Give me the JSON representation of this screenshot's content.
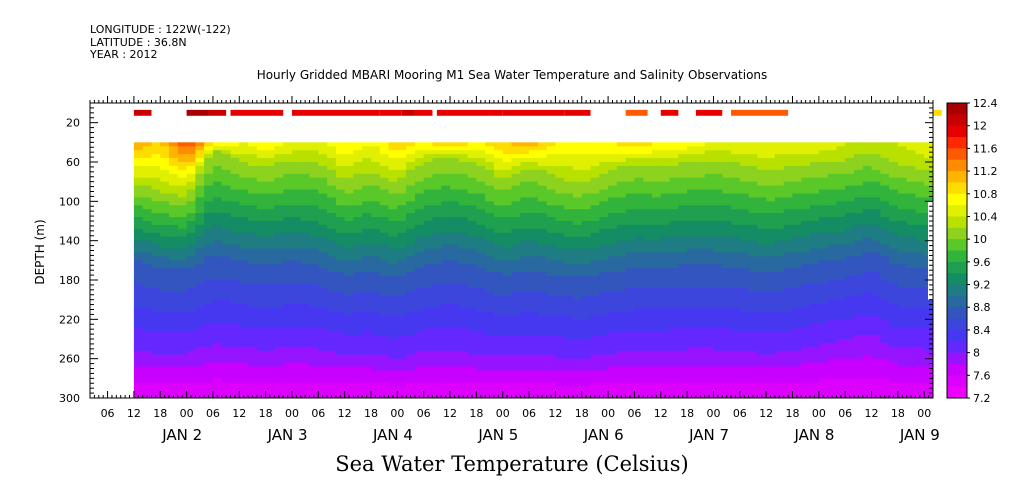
{
  "header": {
    "longitude": "LONGITUDE : 122W(-122)",
    "latitude": "LATITUDE : 36.8N",
    "year": "YEAR : 2012"
  },
  "chart_data": {
    "type": "heatmap",
    "title": "Hourly Gridded MBARI Mooring M1 Sea Water Temperature and Salinity Observations",
    "bottom_title": "Sea Water Temperature (Celsius)",
    "ylabel": "DEPTH (m)",
    "y_axis": {
      "ylim": [
        300,
        0
      ],
      "ticks": [
        20,
        60,
        100,
        140,
        180,
        220,
        260,
        300
      ],
      "reversed": true
    },
    "x_axis": {
      "start": "JAN 1 2012 02:00",
      "end": "JAN 9 2012 04:00",
      "hour_ticks": [
        "06",
        "12",
        "18",
        "00",
        "06",
        "12",
        "18",
        "00",
        "06",
        "12",
        "18",
        "00",
        "06",
        "12",
        "18",
        "00",
        "06",
        "12",
        "18",
        "00",
        "06",
        "12",
        "18",
        "00",
        "06",
        "12",
        "18",
        "00",
        "06",
        "12",
        "18",
        "00"
      ],
      "day_labels": [
        "JAN 2",
        "JAN 3",
        "JAN 4",
        "JAN 5",
        "JAN 6",
        "JAN 7",
        "JAN 8",
        "JAN 9"
      ]
    },
    "colorbar": {
      "range": [
        7.2,
        12.4
      ],
      "labels": [
        "12.4",
        "12",
        "11.6",
        "11.2",
        "10.8",
        "10.4",
        "10",
        "9.6",
        "9.2",
        "8.8",
        "8.4",
        "8",
        "7.6",
        "7.2"
      ],
      "colors": [
        "#a80000",
        "#c80000",
        "#e60000",
        "#ff2800",
        "#ff5a00",
        "#ff8c00",
        "#ffb400",
        "#ffdc00",
        "#ffff00",
        "#e1f000",
        "#b9e100",
        "#8cd21e",
        "#5ac828",
        "#32b43c",
        "#1ea050",
        "#148c64",
        "#1e7d82",
        "#2869a0",
        "#3255be",
        "#3c46dc",
        "#4638f0",
        "#6428ff",
        "#9614ff",
        "#c800ff",
        "#dc00ff",
        "#ee00ff"
      ]
    },
    "data_start_hour": 12,
    "surface_band": {
      "depth": 10,
      "segments": [
        {
          "start": "JAN 1 12:00",
          "end": "JAN 1 16:00",
          "value": 12.2
        },
        {
          "start": "JAN 2 00:00",
          "end": "JAN 2 05:00",
          "value": 12.4
        },
        {
          "start": "JAN 2 05:00",
          "end": "JAN 2 09:00",
          "value": 12.2
        },
        {
          "start": "JAN 2 10:00",
          "end": "JAN 2 22:00",
          "value": 12.0
        },
        {
          "start": "JAN 3 00:00",
          "end": "JAN 3 20:00",
          "value": 12.0
        },
        {
          "start": "JAN 3 20:00",
          "end": "JAN 4 01:00",
          "value": 12.0
        },
        {
          "start": "JAN 4 01:00",
          "end": "JAN 4 04:00",
          "value": 12.2
        },
        {
          "start": "JAN 4 04:00",
          "end": "JAN 4 08:00",
          "value": 12.0
        },
        {
          "start": "JAN 4 09:00",
          "end": "JAN 4 21:00",
          "value": 12.0
        },
        {
          "start": "JAN 4 21:00",
          "end": "JAN 5 00:00",
          "value": 12.0
        },
        {
          "start": "JAN 5 00:00",
          "end": "JAN 5 14:00",
          "value": 11.9
        },
        {
          "start": "JAN 5 14:00",
          "end": "JAN 5 20:00",
          "value": 12.0
        },
        {
          "start": "JAN 6 04:00",
          "end": "JAN 6 09:00",
          "value": 11.5
        },
        {
          "start": "JAN 6 12:00",
          "end": "JAN 6 16:00",
          "value": 11.8
        },
        {
          "start": "JAN 6 20:00",
          "end": "JAN 7 02:00",
          "value": 11.8
        },
        {
          "start": "JAN 7 04:00",
          "end": "JAN 7 17:00",
          "value": 11.6
        },
        {
          "start": "JAN 9 02:00",
          "end": "JAN 9 04:00",
          "value": 11.0
        }
      ]
    },
    "profile": {
      "top_depth": 40,
      "time_series": [
        {
          "t": "JAN 1 12:00",
          "thermocline": 82,
          "mid_isotherm": 160,
          "deep_isotherm": 250,
          "surface_value": 11.2
        },
        {
          "t": "JAN 1 18:00",
          "thermocline": 90,
          "mid_isotherm": 168,
          "deep_isotherm": 255,
          "surface_value": 11.0
        },
        {
          "t": "JAN 2 00:00",
          "thermocline": 95,
          "mid_isotherm": 170,
          "deep_isotherm": 255,
          "surface_value": 11.6
        },
        {
          "t": "JAN 2 06:00",
          "thermocline": 48,
          "mid_isotherm": 155,
          "deep_isotherm": 245,
          "surface_value": 11.0
        },
        {
          "t": "JAN 2 12:00",
          "thermocline": 60,
          "mid_isotherm": 160,
          "deep_isotherm": 248,
          "surface_value": 10.6
        },
        {
          "t": "JAN 2 18:00",
          "thermocline": 65,
          "mid_isotherm": 165,
          "deep_isotherm": 252,
          "surface_value": 10.8
        },
        {
          "t": "JAN 3 00:00",
          "thermocline": 58,
          "mid_isotherm": 160,
          "deep_isotherm": 248,
          "surface_value": 10.6
        },
        {
          "t": "JAN 3 06:00",
          "thermocline": 60,
          "mid_isotherm": 165,
          "deep_isotherm": 250,
          "surface_value": 10.6
        },
        {
          "t": "JAN 3 12:00",
          "thermocline": 78,
          "mid_isotherm": 175,
          "deep_isotherm": 255,
          "surface_value": 10.8
        },
        {
          "t": "JAN 3 18:00",
          "thermocline": 70,
          "mid_isotherm": 170,
          "deep_isotherm": 255,
          "surface_value": 10.6
        },
        {
          "t": "JAN 4 00:00",
          "thermocline": 80,
          "mid_isotherm": 178,
          "deep_isotherm": 260,
          "surface_value": 11.0
        },
        {
          "t": "JAN 4 06:00",
          "thermocline": 60,
          "mid_isotherm": 165,
          "deep_isotherm": 252,
          "surface_value": 10.8
        },
        {
          "t": "JAN 4 12:00",
          "thermocline": 55,
          "mid_isotherm": 160,
          "deep_isotherm": 250,
          "surface_value": 11.0
        },
        {
          "t": "JAN 4 18:00",
          "thermocline": 62,
          "mid_isotherm": 165,
          "deep_isotherm": 255,
          "surface_value": 10.8
        },
        {
          "t": "JAN 5 00:00",
          "thermocline": 78,
          "mid_isotherm": 175,
          "deep_isotherm": 258,
          "surface_value": 11.0
        },
        {
          "t": "JAN 5 06:00",
          "thermocline": 65,
          "mid_isotherm": 170,
          "deep_isotherm": 255,
          "surface_value": 11.2
        },
        {
          "t": "JAN 5 12:00",
          "thermocline": 75,
          "mid_isotherm": 175,
          "deep_isotherm": 258,
          "surface_value": 10.8
        },
        {
          "t": "JAN 5 18:00",
          "thermocline": 82,
          "mid_isotherm": 178,
          "deep_isotherm": 260,
          "surface_value": 10.8
        },
        {
          "t": "JAN 6 00:00",
          "thermocline": 70,
          "mid_isotherm": 172,
          "deep_isotherm": 255,
          "surface_value": 10.8
        },
        {
          "t": "JAN 6 06:00",
          "thermocline": 62,
          "mid_isotherm": 168,
          "deep_isotherm": 252,
          "surface_value": 11.0
        },
        {
          "t": "JAN 6 12:00",
          "thermocline": 65,
          "mid_isotherm": 168,
          "deep_isotherm": 252,
          "surface_value": 10.8
        },
        {
          "t": "JAN 6 18:00",
          "thermocline": 60,
          "mid_isotherm": 165,
          "deep_isotherm": 250,
          "surface_value": 10.8
        },
        {
          "t": "JAN 7 00:00",
          "thermocline": 58,
          "mid_isotherm": 165,
          "deep_isotherm": 250,
          "surface_value": 10.6
        },
        {
          "t": "JAN 7 06:00",
          "thermocline": 62,
          "mid_isotherm": 168,
          "deep_isotherm": 252,
          "surface_value": 10.6
        },
        {
          "t": "JAN 7 12:00",
          "thermocline": 70,
          "mid_isotherm": 172,
          "deep_isotherm": 255,
          "surface_value": 10.6
        },
        {
          "t": "JAN 7 18:00",
          "thermocline": 65,
          "mid_isotherm": 168,
          "deep_isotherm": 252,
          "surface_value": 10.6
        },
        {
          "t": "JAN 8 00:00",
          "thermocline": 60,
          "mid_isotherm": 162,
          "deep_isotherm": 245,
          "surface_value": 10.6
        },
        {
          "t": "JAN 8 06:00",
          "thermocline": 58,
          "mid_isotherm": 158,
          "deep_isotherm": 240,
          "surface_value": 10.4
        },
        {
          "t": "JAN 8 12:00",
          "thermocline": 50,
          "mid_isotherm": 150,
          "deep_isotherm": 235,
          "surface_value": 10.2
        },
        {
          "t": "JAN 8 18:00",
          "thermocline": 62,
          "mid_isotherm": 165,
          "deep_isotherm": 250,
          "surface_value": 10.4
        },
        {
          "t": "JAN 9 00:00",
          "thermocline": 68,
          "mid_isotherm": 168,
          "deep_isotherm": 250,
          "surface_value": 10.6
        },
        {
          "t": "JAN 9 04:00",
          "thermocline": 70,
          "mid_isotherm": 170,
          "deep_isotherm": 252,
          "surface_value": 10.6
        }
      ]
    }
  }
}
